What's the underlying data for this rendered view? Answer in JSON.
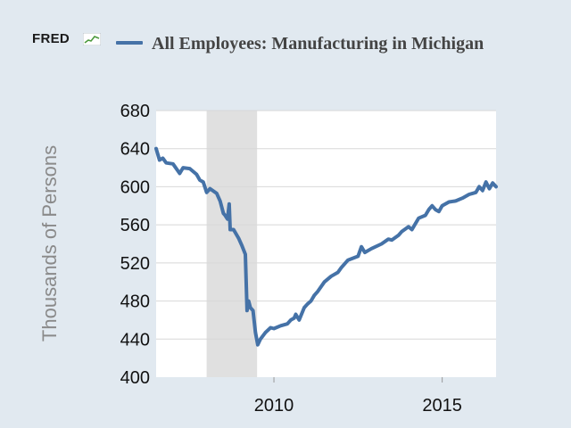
{
  "header": {
    "logo_text": "FRED",
    "title": "All Employees: Manufacturing in Michigan"
  },
  "colors": {
    "background": "#e1e9f0",
    "plot": "#ffffff",
    "series": "#4572a7",
    "recession": "#e0e0e0",
    "grid": "#d8d8d8"
  },
  "chart_data": {
    "type": "line",
    "title": "All Employees: Manufacturing in Michigan",
    "xlabel": "",
    "ylabel": "Thousands of Persons",
    "ylim": [
      400,
      680
    ],
    "xlim": [
      2006.5,
      2016.6
    ],
    "yticks": [
      400,
      440,
      480,
      520,
      560,
      600,
      640,
      680
    ],
    "xticks": [
      2010,
      2015
    ],
    "grid": true,
    "recession_shading": [
      {
        "start": 2008.0,
        "end": 2009.5
      }
    ],
    "series": [
      {
        "name": "All Employees: Manufacturing in Michigan",
        "x": [
          2006.5,
          2006.6,
          2006.7,
          2006.8,
          2007.0,
          2007.2,
          2007.3,
          2007.5,
          2007.7,
          2007.8,
          2007.9,
          2008.0,
          2008.1,
          2008.3,
          2008.4,
          2008.5,
          2008.55,
          2008.62,
          2008.67,
          2008.7,
          2008.8,
          2008.95,
          2009.05,
          2009.15,
          2009.2,
          2009.25,
          2009.3,
          2009.38,
          2009.45,
          2009.52,
          2009.6,
          2009.75,
          2009.9,
          2010.0,
          2010.2,
          2010.4,
          2010.5,
          2010.6,
          2010.65,
          2010.75,
          2010.9,
          2011.0,
          2011.1,
          2011.2,
          2011.3,
          2011.5,
          2011.7,
          2011.9,
          2012.0,
          2012.2,
          2012.5,
          2012.6,
          2012.7,
          2012.9,
          2013.2,
          2013.4,
          2013.5,
          2013.7,
          2013.8,
          2014.0,
          2014.1,
          2014.3,
          2014.5,
          2014.6,
          2014.7,
          2014.8,
          2014.9,
          2015.0,
          2015.2,
          2015.4,
          2015.6,
          2015.8,
          2015.9,
          2016.0,
          2016.1,
          2016.2,
          2016.3,
          2016.4,
          2016.5,
          2016.6
        ],
        "values": [
          640,
          628,
          630,
          625,
          624,
          614,
          620,
          619,
          613,
          607,
          605,
          594,
          598,
          593,
          585,
          572,
          570,
          566,
          582,
          555,
          555,
          546,
          538,
          529,
          470,
          480,
          473,
          470,
          447,
          434,
          440,
          447,
          452,
          451,
          454,
          456,
          460,
          462,
          466,
          460,
          473,
          477,
          480,
          486,
          490,
          500,
          506,
          510,
          515,
          523,
          527,
          537,
          531,
          535,
          540,
          545,
          544,
          549,
          553,
          558,
          555,
          567,
          570,
          576,
          580,
          576,
          574,
          580,
          584,
          585,
          588,
          592,
          593,
          594,
          600,
          596,
          605,
          598,
          604,
          600
        ]
      }
    ]
  }
}
